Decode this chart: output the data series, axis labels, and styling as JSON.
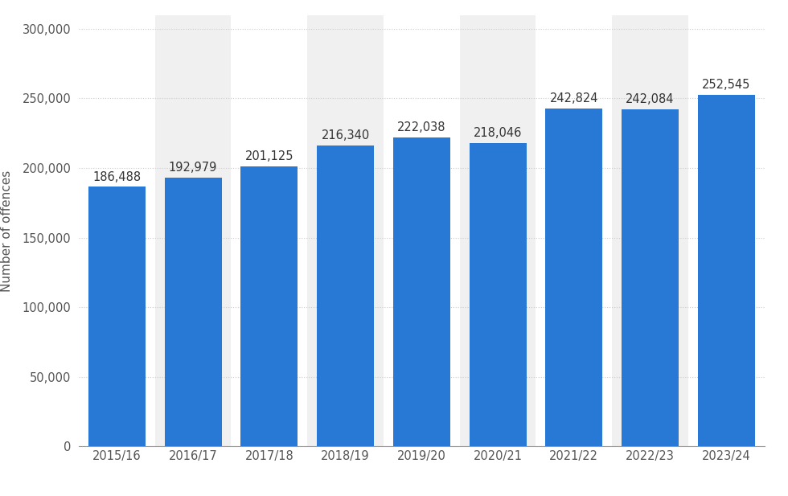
{
  "categories": [
    "2015/16",
    "2016/17",
    "2017/18",
    "2018/19",
    "2019/20",
    "2020/21",
    "2021/22",
    "2022/23",
    "2023/24"
  ],
  "values": [
    186488,
    192979,
    201125,
    216340,
    222038,
    218046,
    242824,
    242084,
    252545
  ],
  "bar_color": "#2878d6",
  "ylabel": "Number of offences",
  "ylim": [
    0,
    310000
  ],
  "yticks": [
    0,
    50000,
    100000,
    150000,
    200000,
    250000,
    300000
  ],
  "background_color": "#ffffff",
  "plot_bg_color": "#ffffff",
  "grid_color": "#cccccc",
  "stripe_colors": [
    "#ffffff",
    "#f0f0f0"
  ],
  "label_fontsize": 10.5,
  "tick_fontsize": 10.5,
  "ylabel_fontsize": 11
}
